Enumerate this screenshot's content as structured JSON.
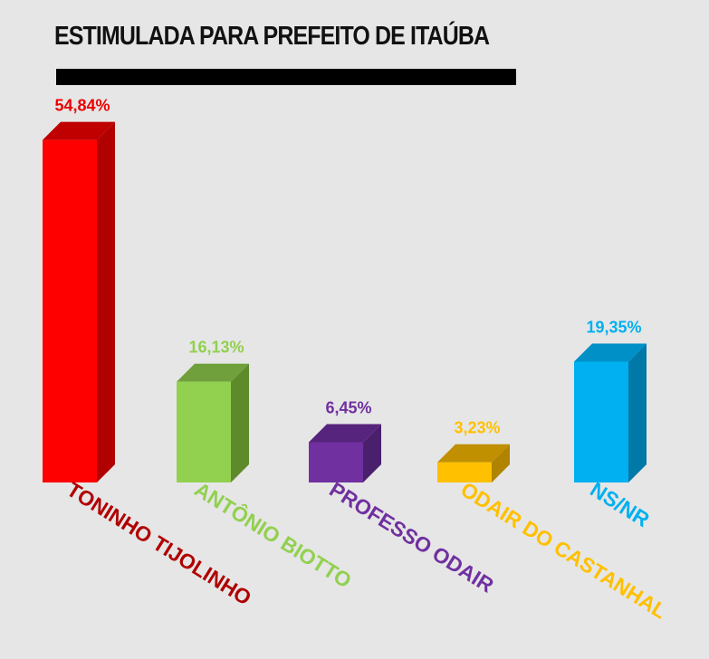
{
  "chart_data": {
    "type": "bar",
    "title": "ESTIMULADA PARA PREFEITO DE ITAÚBA",
    "categories": [
      "TONINHO TIJOLINHO",
      "ANTÔNIO BIOTTO",
      "PROFESSO ODAIR",
      "ODAIR DO CASTANHAL",
      "NS/NR"
    ],
    "values": [
      54.84,
      16.13,
      6.45,
      3.23,
      19.35
    ],
    "value_labels": [
      "54,84%",
      "16,13%",
      "6,45%",
      "3,23%",
      "19,35%"
    ],
    "colors": [
      {
        "front": "#ff0000",
        "side": "#b00000",
        "top": "#c00000",
        "label": "#ee0000",
        "category": "#b00000"
      },
      {
        "front": "#92d050",
        "side": "#5f8a2c",
        "top": "#70a03c",
        "label": "#92d050",
        "category": "#92d050"
      },
      {
        "front": "#7030a0",
        "side": "#4a1f6c",
        "top": "#56247c",
        "label": "#7030a0",
        "category": "#7030a0"
      },
      {
        "front": "#ffc000",
        "side": "#b08400",
        "top": "#c09000",
        "label": "#ffc000",
        "category": "#ffc000"
      },
      {
        "front": "#00b0f0",
        "side": "#0078a8",
        "top": "#0090c8",
        "label": "#00b0f0",
        "category": "#00b0f0"
      }
    ],
    "ylim": [
      0,
      60
    ],
    "grid": false,
    "xlabel": "",
    "ylabel": ""
  }
}
